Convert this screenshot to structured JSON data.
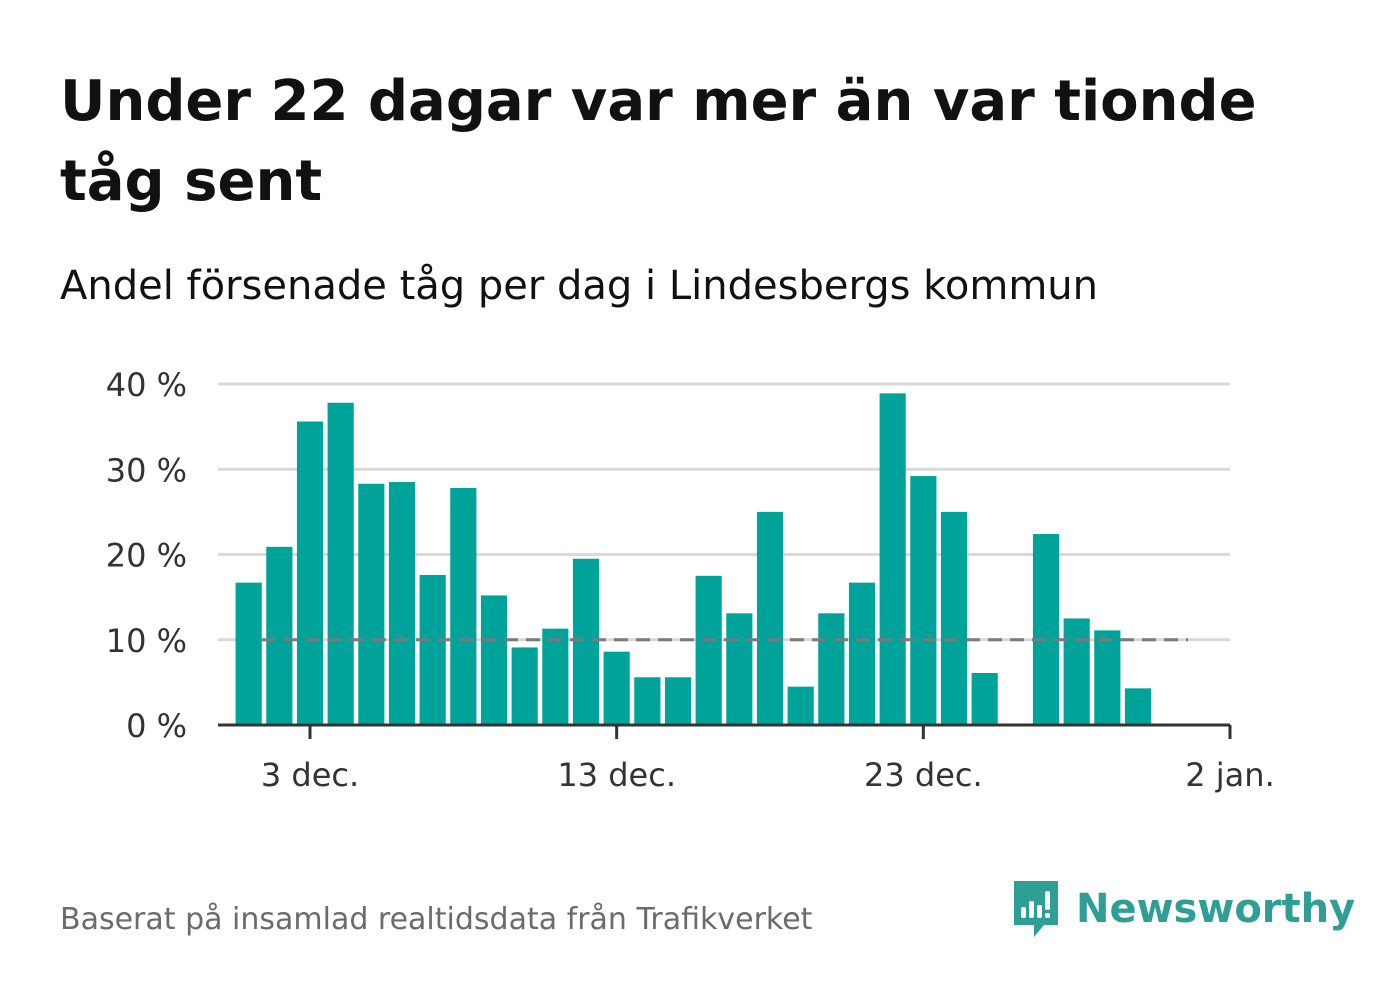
{
  "title": "Under 22 dagar var mer än var tionde tåg sent",
  "subtitle": "Andel försenade tåg per dag i Lindesbergs kommun",
  "source": "Baserat på insamlad realtidsdata från Trafikverket",
  "brand": {
    "name": "Newsworthy",
    "icon": "newsworthy-logo-icon",
    "color": "#2e9e97"
  },
  "chart_data": {
    "type": "bar",
    "unit": "%",
    "bar_color": "#00a39a",
    "reference_line": {
      "value": 10,
      "style": "dashed",
      "color": "#7a7a7a"
    },
    "x_start": "2021-11-30",
    "x_end": "2022-01-02",
    "x_ticks": [
      {
        "date": "2021-12-03",
        "label": "3 dec."
      },
      {
        "date": "2021-12-13",
        "label": "13 dec."
      },
      {
        "date": "2021-12-23",
        "label": "23 dec."
      },
      {
        "date": "2022-01-02",
        "label": "2 jan."
      }
    ],
    "y_ticks": [
      {
        "value": 0,
        "label": "0 %"
      },
      {
        "value": 10,
        "label": "10 %"
      },
      {
        "value": 20,
        "label": "20 %"
      },
      {
        "value": 30,
        "label": "30 %"
      },
      {
        "value": 40,
        "label": "40 %"
      }
    ],
    "ylim": [
      0,
      40
    ],
    "grid": true,
    "points": [
      {
        "date": "2021-12-01",
        "value": 16.7
      },
      {
        "date": "2021-12-02",
        "value": 20.9
      },
      {
        "date": "2021-12-03",
        "value": 35.6
      },
      {
        "date": "2021-12-04",
        "value": 37.8
      },
      {
        "date": "2021-12-05",
        "value": 28.3
      },
      {
        "date": "2021-12-06",
        "value": 28.5
      },
      {
        "date": "2021-12-07",
        "value": 17.6
      },
      {
        "date": "2021-12-08",
        "value": 27.8
      },
      {
        "date": "2021-12-09",
        "value": 15.2
      },
      {
        "date": "2021-12-10",
        "value": 9.1
      },
      {
        "date": "2021-12-11",
        "value": 11.3
      },
      {
        "date": "2021-12-12",
        "value": 19.5
      },
      {
        "date": "2021-12-13",
        "value": 8.6
      },
      {
        "date": "2021-12-14",
        "value": 5.6
      },
      {
        "date": "2021-12-15",
        "value": 5.6
      },
      {
        "date": "2021-12-16",
        "value": 17.5
      },
      {
        "date": "2021-12-17",
        "value": 13.1
      },
      {
        "date": "2021-12-18",
        "value": 25.0
      },
      {
        "date": "2021-12-19",
        "value": 4.5
      },
      {
        "date": "2021-12-20",
        "value": 13.1
      },
      {
        "date": "2021-12-21",
        "value": 16.7
      },
      {
        "date": "2021-12-22",
        "value": 38.9
      },
      {
        "date": "2021-12-23",
        "value": 29.2
      },
      {
        "date": "2021-12-24",
        "value": 25.0
      },
      {
        "date": "2021-12-25",
        "value": 6.1
      },
      {
        "date": "2021-12-26",
        "value": 0
      },
      {
        "date": "2021-12-27",
        "value": 22.4
      },
      {
        "date": "2021-12-28",
        "value": 12.5
      },
      {
        "date": "2021-12-29",
        "value": 11.1
      },
      {
        "date": "2021-12-30",
        "value": 4.3
      }
    ]
  }
}
